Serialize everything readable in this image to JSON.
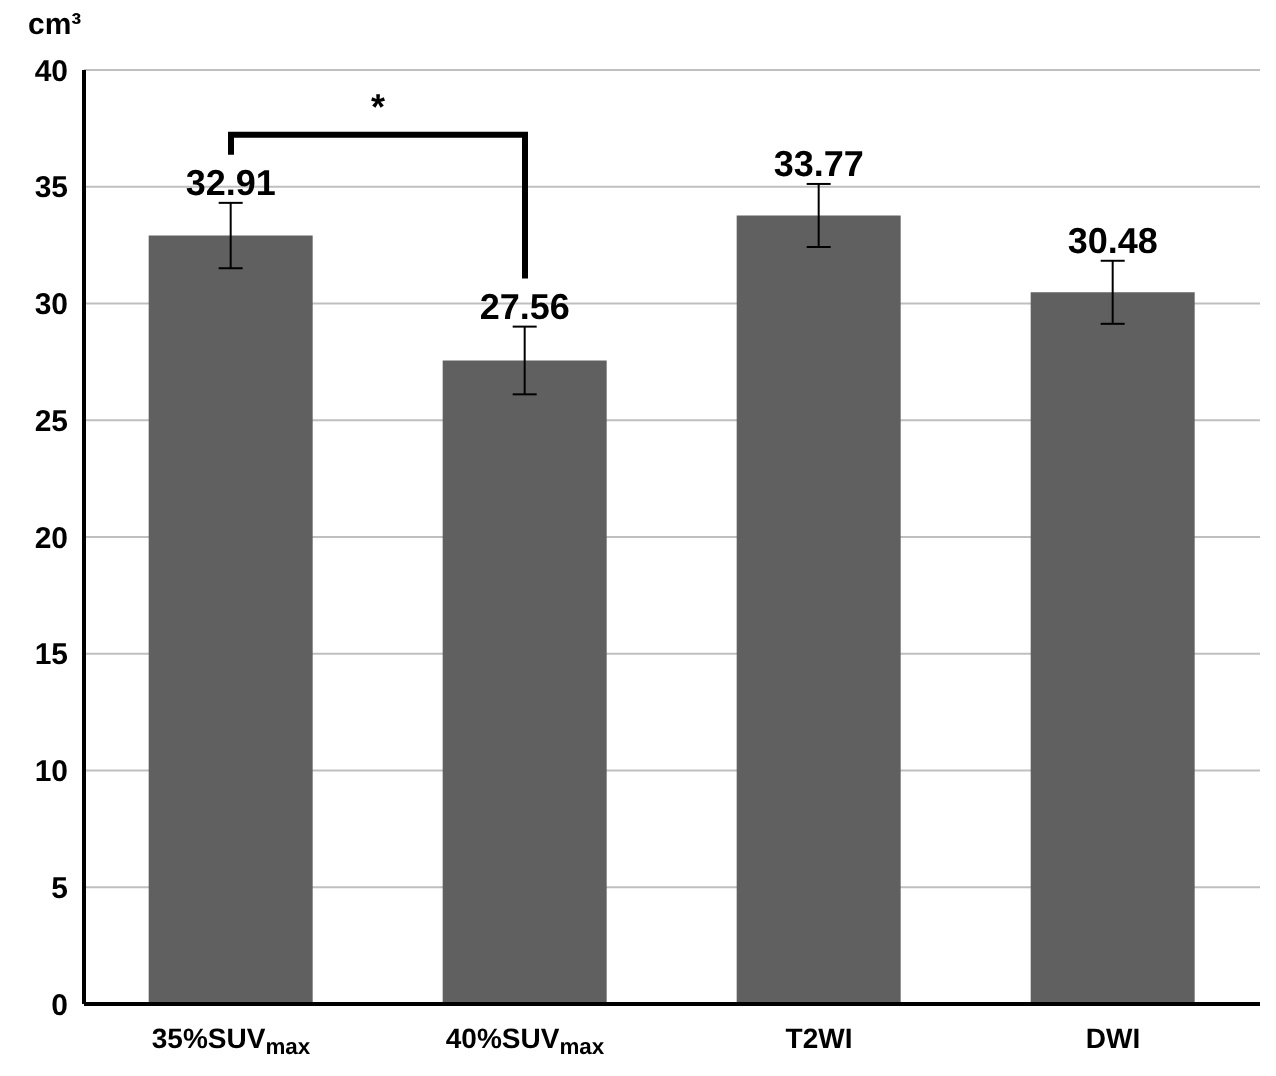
{
  "chart_data": {
    "type": "bar",
    "ylabel": "cm³",
    "categories": [
      "35%SUV$_{max}$",
      "40%SUV$_{max}$",
      "T2WI",
      "DWI"
    ],
    "values": [
      32.91,
      27.56,
      33.77,
      30.48
    ],
    "color": "#606060",
    "errors": [
      1.4,
      1.45,
      1.35,
      1.35
    ],
    "ylim": [
      0,
      40
    ],
    "yticks": [
      0,
      5,
      10,
      15,
      20,
      25,
      30,
      35,
      40
    ],
    "grid": "y",
    "data_labels": true,
    "annotations": [
      "*"
    ]
  }
}
